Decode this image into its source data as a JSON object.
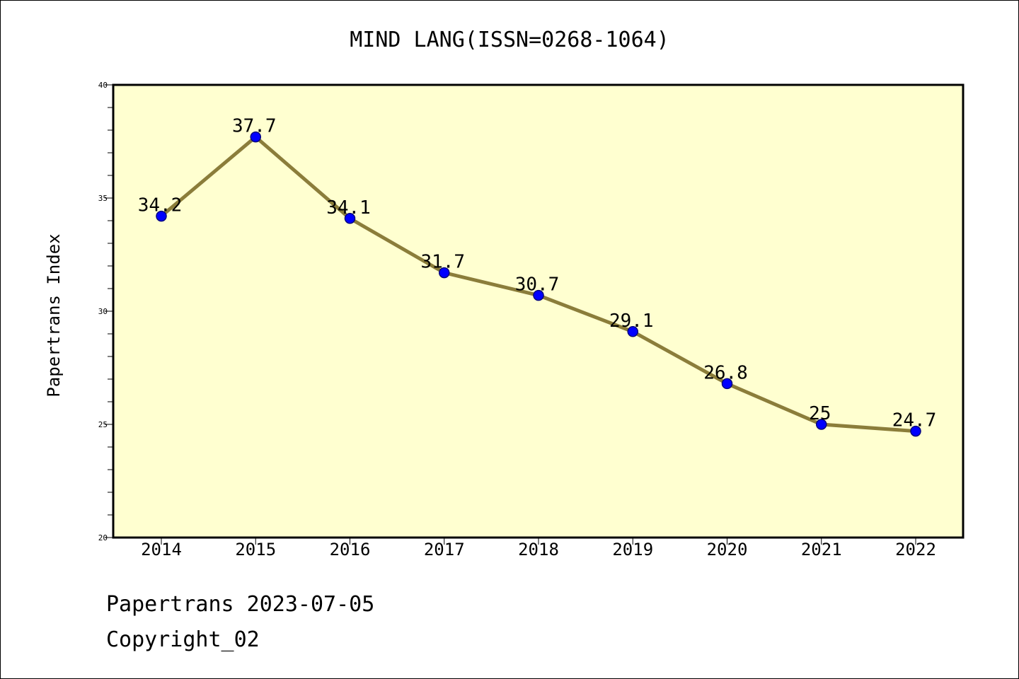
{
  "chart_data": {
    "type": "line",
    "title": "MIND LANG(ISSN=0268-1064)",
    "xlabel": "",
    "ylabel": "Papertrans Index",
    "categories": [
      "2014",
      "2015",
      "2016",
      "2017",
      "2018",
      "2019",
      "2020",
      "2021",
      "2022"
    ],
    "series": [
      {
        "values": [
          34.2,
          37.7,
          34.1,
          31.7,
          30.7,
          29.1,
          26.8,
          25,
          24.7
        ],
        "labels": [
          "34.2",
          "37.7",
          "34.1",
          "31.7",
          "30.7",
          "29.1",
          "26.8",
          "25",
          "24.7"
        ]
      }
    ],
    "ylim": [
      20,
      40
    ],
    "yticks": [
      "20",
      "25",
      "30",
      "35",
      "40"
    ],
    "grid": false,
    "legend": "none",
    "colors": {
      "plot_background": "#ffffd0",
      "line": "#8b7d3a",
      "marker": "#0000ff",
      "marker_edge": "#000080"
    }
  },
  "footer": {
    "line1": "Papertrans 2023-07-05",
    "line2": "Copyright_02"
  }
}
